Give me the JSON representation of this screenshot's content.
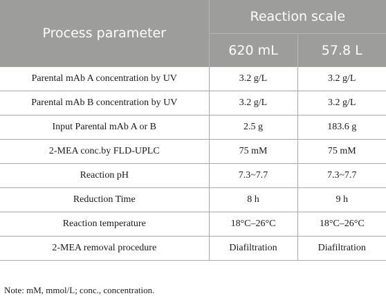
{
  "table": {
    "header": {
      "process_parameter": "Process parameter",
      "reaction_scale": "Reaction scale",
      "scales": [
        "620 mL",
        "57.8 L"
      ]
    },
    "rows": [
      {
        "parameter": "Parental mAb A concentration by UV",
        "v1": "3.2 g/L",
        "v2": "3.2 g/L"
      },
      {
        "parameter": "Parental mAb B concentration by UV",
        "v1": "3.2 g/L",
        "v2": "3.2 g/L"
      },
      {
        "parameter": "Input Parental mAb A or B",
        "v1": "2.5 g",
        "v2": "183.6 g"
      },
      {
        "parameter": "2-MEA conc.by FLD-UPLC",
        "v1": "75 mM",
        "v2": "75 mM"
      },
      {
        "parameter": "Reaction pH",
        "v1": "7.3~7.7",
        "v2": "7.3~7.7"
      },
      {
        "parameter": "Reduction Time",
        "v1": "8 h",
        "v2": "9 h"
      },
      {
        "parameter": "Reaction temperature",
        "v1": "18°C–26°C",
        "v2": "18°C–26°C"
      },
      {
        "parameter": "2-MEA removal procedure",
        "v1": "Diafiltration",
        "v2": "Diafiltration"
      }
    ]
  },
  "note": "Note: mM, mmol/L; conc., concentration."
}
